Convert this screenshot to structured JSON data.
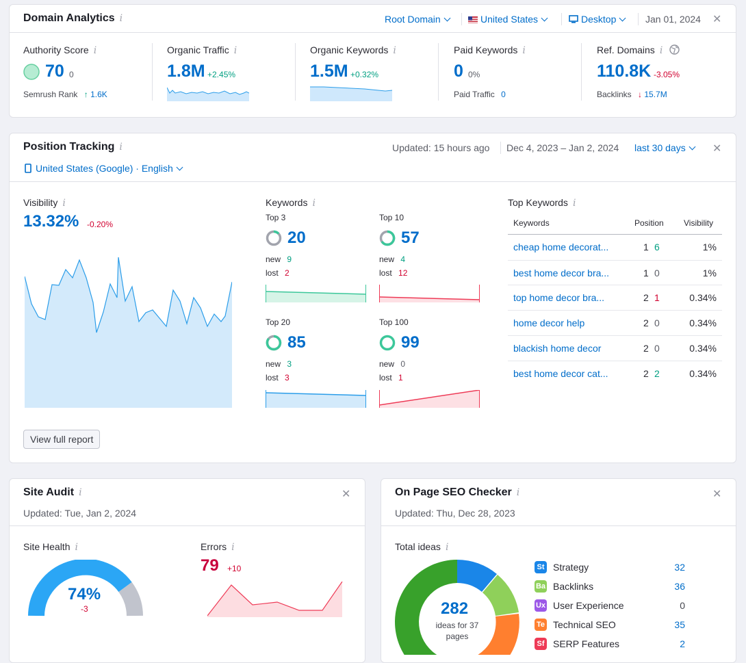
{
  "domain_analytics": {
    "title": "Domain Analytics",
    "root_domain": "Root Domain",
    "country": "United States",
    "device": "Desktop",
    "date": "Jan 01, 2024",
    "metrics": {
      "authority": {
        "label": "Authority Score",
        "value": "70",
        "change": "0",
        "sub_label": "Semrush Rank",
        "sub_value": "1.6K"
      },
      "organic_traffic": {
        "label": "Organic Traffic",
        "value": "1.8M",
        "change": "+2.45%"
      },
      "organic_keywords": {
        "label": "Organic Keywords",
        "value": "1.5M",
        "change": "+0.32%"
      },
      "paid_keywords": {
        "label": "Paid Keywords",
        "value": "0",
        "change": "0%",
        "sub_label": "Paid Traffic",
        "sub_value": "0"
      },
      "ref_domains": {
        "label": "Ref. Domains",
        "value": "110.8K",
        "change": "-3.05%",
        "sub_label": "Backlinks",
        "sub_value": "15.7M"
      }
    }
  },
  "position_tracking": {
    "title": "Position Tracking",
    "updated": "Updated: 15 hours ago",
    "date_range": "Dec 4, 2023 – Jan 2, 2024",
    "period": "last 30 days",
    "location": "United States (Google) · English",
    "visibility": {
      "label": "Visibility",
      "value": "13.32%",
      "change": "-0.20%"
    },
    "keywords_label": "Keywords",
    "new_label": "new",
    "lost_label": "lost",
    "tiles": [
      {
        "label": "Top 3",
        "value": "20",
        "new": "9",
        "lost": "2"
      },
      {
        "label": "Top 10",
        "value": "57",
        "new": "4",
        "lost": "12"
      },
      {
        "label": "Top 20",
        "value": "85",
        "new": "3",
        "lost": "3"
      },
      {
        "label": "Top 100",
        "value": "99",
        "new": "0",
        "lost": "1"
      }
    ],
    "top_keywords": {
      "title": "Top Keywords",
      "headers": [
        "Keywords",
        "Position",
        "Visibility"
      ],
      "rows": [
        {
          "keyword": "cheap home decorat...",
          "position": "1",
          "diff": "6",
          "visibility": "1%"
        },
        {
          "keyword": "best home decor bra...",
          "position": "1",
          "diff": "0",
          "visibility": "1%"
        },
        {
          "keyword": "top home decor bra...",
          "position": "2",
          "diff": "1",
          "visibility": "0.34%"
        },
        {
          "keyword": "home decor help",
          "position": "2",
          "diff": "0",
          "visibility": "0.34%"
        },
        {
          "keyword": "blackish home decor",
          "position": "2",
          "diff": "0",
          "visibility": "0.34%"
        },
        {
          "keyword": "best home decor cat...",
          "position": "2",
          "diff": "2",
          "visibility": "0.34%"
        }
      ]
    },
    "view_report": "View full report"
  },
  "site_audit": {
    "title": "Site Audit",
    "updated": "Updated: Tue, Jan 2, 2024",
    "health": {
      "label": "Site Health",
      "value": "74%",
      "change": "-3"
    },
    "errors": {
      "label": "Errors",
      "value": "79",
      "change": "+10"
    }
  },
  "on_page": {
    "title": "On Page SEO Checker",
    "updated": "Updated: Thu, Dec 28, 2023",
    "total_label": "Total ideas",
    "total": "282",
    "total_sub": "ideas for 37 pages",
    "legend": [
      {
        "abbr": "St",
        "name": "Strategy",
        "value": "32",
        "color": "#1a86e8"
      },
      {
        "abbr": "Ba",
        "name": "Backlinks",
        "value": "36",
        "color": "#8fd05a"
      },
      {
        "abbr": "Ux",
        "name": "User Experience",
        "value": "0",
        "color": "#9c59e8"
      },
      {
        "abbr": "Te",
        "name": "Technical SEO",
        "value": "35",
        "color": "#ff7f2f"
      },
      {
        "abbr": "Sf",
        "name": "SERP Features",
        "value": "2",
        "color": "#ee3a56"
      }
    ]
  }
}
